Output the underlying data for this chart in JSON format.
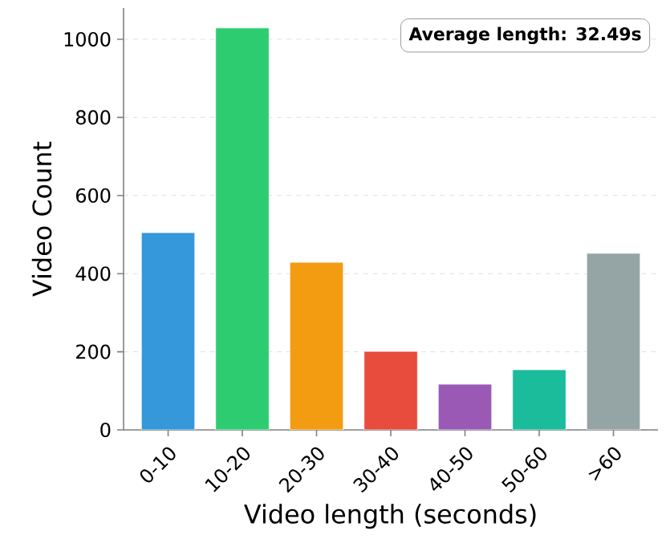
{
  "chart_data": {
    "type": "bar",
    "categories": [
      "0-10",
      "10-20",
      "20-30",
      "30-40",
      "40-50",
      "50-60",
      ">60"
    ],
    "values": [
      505,
      1029,
      429,
      201,
      117,
      154,
      452
    ],
    "colors": [
      "#3498db",
      "#2ecc71",
      "#f39c12",
      "#e74c3c",
      "#9b59b6",
      "#1abc9c",
      "#95a5a6"
    ],
    "xlabel": "Video length (seconds)",
    "ylabel": "Video Count",
    "ylim": [
      0,
      1080
    ],
    "yticks": [
      0,
      200,
      400,
      600,
      800,
      1000
    ],
    "grid": "y",
    "annotations": [
      "Average length: 32.49s"
    ]
  }
}
